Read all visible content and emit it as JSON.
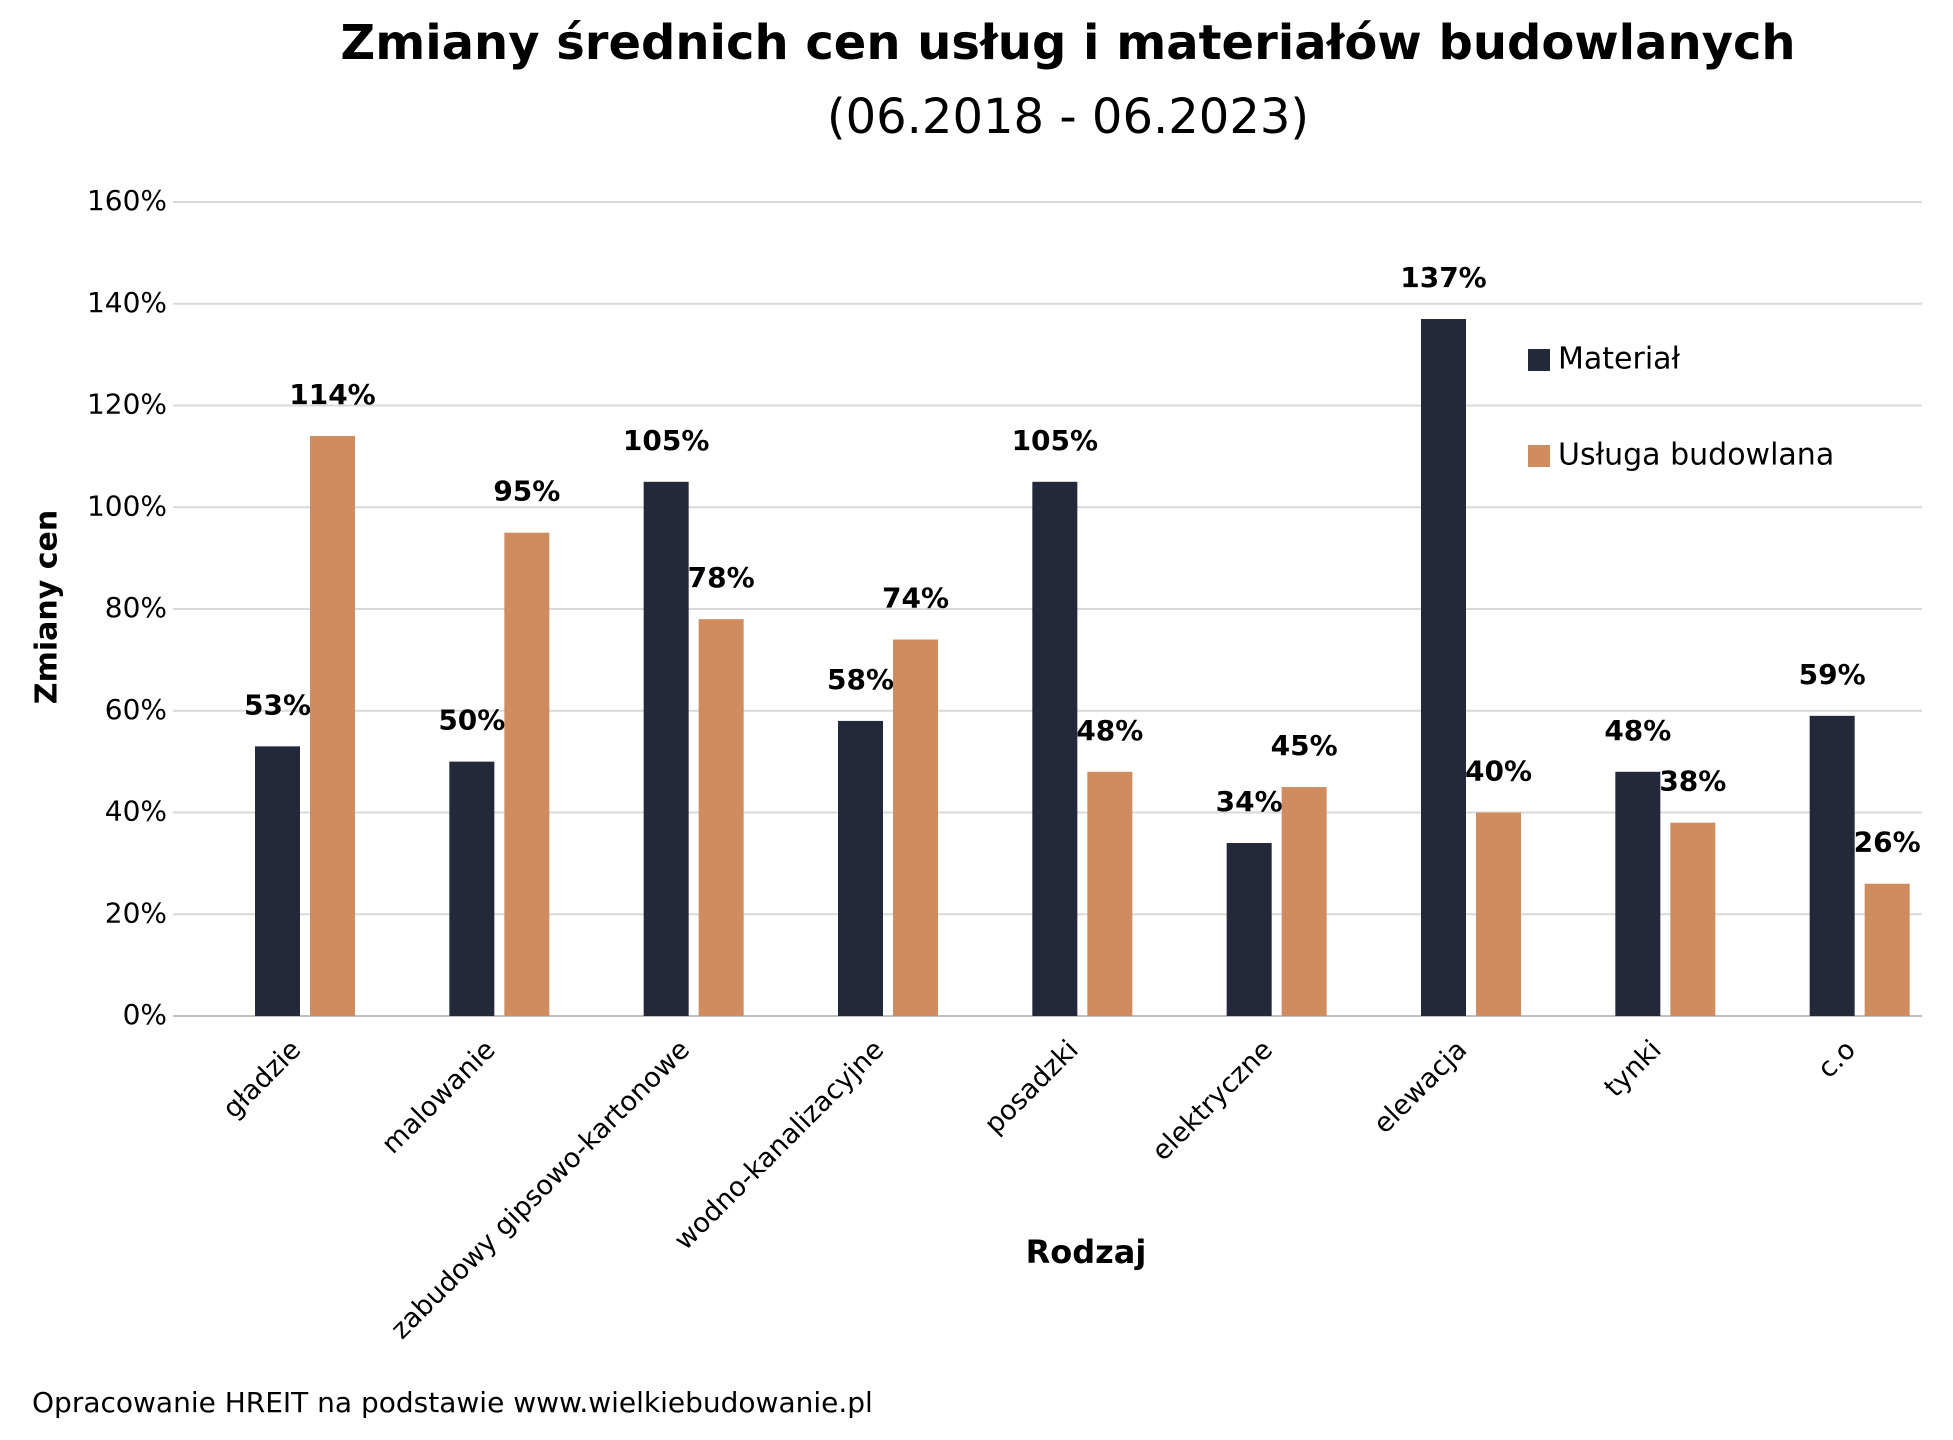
{
  "chart_data": {
    "type": "bar",
    "title": "Zmiany średnich cen usług i materiałów budowlanych",
    "subtitle": "(06.2018 - 06.2023)",
    "y_label": "Zmiany cen",
    "x_label": "Rodzaj",
    "source": "Opracowanie HREIT na podstawie www.wielkiebudowanie.pl",
    "categories": [
      "gładzie",
      "malowanie",
      "zabudowy gipsowo-kartonowe",
      "wodno-kanalizacyjne",
      "posadzki",
      "elektryczne",
      "elewacja",
      "tynki",
      "c.o"
    ],
    "series": [
      {
        "name": "Materiał",
        "color": "#23283a",
        "values": [
          53,
          50,
          105,
          58,
          105,
          34,
          137,
          48,
          59
        ],
        "value_labels": [
          "53%",
          "50%",
          "105%",
          "58%",
          "105%",
          "34%",
          "137%",
          "48%",
          "59%"
        ]
      },
      {
        "name": "Usługa budowlana",
        "color": "#cf8c5e",
        "values": [
          114,
          95,
          78,
          74,
          48,
          45,
          40,
          38,
          26
        ],
        "value_labels": [
          "114%",
          "95%",
          "78%",
          "74%",
          "48%",
          "45%",
          "40%",
          "38%",
          "26%"
        ]
      }
    ],
    "ylim": [
      0,
      160
    ],
    "yticks": [
      {
        "value": 0,
        "label": "0%"
      },
      {
        "value": 20,
        "label": "20%"
      },
      {
        "value": 40,
        "label": "40%"
      },
      {
        "value": 60,
        "label": "60%"
      },
      {
        "value": 80,
        "label": "80%"
      },
      {
        "value": 100,
        "label": "100%"
      },
      {
        "value": 120,
        "label": "120%"
      },
      {
        "value": 140,
        "label": "140%"
      },
      {
        "value": 160,
        "label": "160%"
      }
    ],
    "grid": true,
    "legend": "upper-right"
  }
}
